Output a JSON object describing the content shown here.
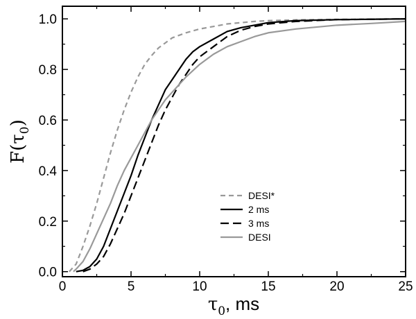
{
  "chart_data": {
    "type": "line",
    "title": "",
    "xlabel": {
      "main": "τ",
      "sub": "0",
      "rest": ",  ms"
    },
    "ylabel": {
      "main": "F(τ",
      "sub": "0",
      "rest": ")"
    },
    "xlim": [
      0,
      25
    ],
    "ylim": [
      -0.02,
      1.05
    ],
    "xticks": [
      0,
      5,
      10,
      15,
      20,
      25
    ],
    "xtick_labels": [
      "0",
      "5",
      "10",
      "15",
      "20",
      "25"
    ],
    "yticks": [
      0.0,
      0.2,
      0.4,
      0.6,
      0.8,
      1.0
    ],
    "ytick_labels": [
      "0.0",
      "0.2",
      "0.4",
      "0.6",
      "0.8",
      "1.0"
    ],
    "grid": false,
    "legend_position": "center-right",
    "series": [
      {
        "name": "DESI*",
        "color": "#999999",
        "dash": "dashed",
        "x": [
          0.5,
          1.0,
          1.5,
          2.0,
          2.5,
          3.0,
          3.5,
          4.0,
          4.5,
          5.0,
          5.5,
          6.0,
          6.5,
          7.0,
          7.5,
          8.0,
          9.0,
          10.0,
          11.0,
          12.0,
          13.0,
          14.0,
          15.0,
          17.0,
          20.0,
          25.0
        ],
        "y": [
          0.0,
          0.03,
          0.1,
          0.18,
          0.27,
          0.37,
          0.47,
          0.56,
          0.64,
          0.71,
          0.77,
          0.82,
          0.855,
          0.885,
          0.905,
          0.925,
          0.945,
          0.96,
          0.97,
          0.98,
          0.985,
          0.99,
          0.993,
          0.996,
          0.998,
          1.0
        ]
      },
      {
        "name": "2 ms",
        "color": "#000000",
        "dash": "solid",
        "x": [
          1.0,
          1.5,
          2.0,
          2.5,
          3.0,
          3.5,
          4.0,
          4.5,
          5.0,
          5.5,
          6.0,
          6.5,
          7.0,
          7.5,
          8.0,
          8.5,
          9.0,
          9.5,
          10.0,
          11.0,
          12.0,
          13.0,
          14.0,
          15.0,
          17.0,
          20.0,
          25.0
        ],
        "y": [
          0.0,
          0.005,
          0.02,
          0.05,
          0.1,
          0.17,
          0.24,
          0.31,
          0.38,
          0.46,
          0.53,
          0.6,
          0.66,
          0.72,
          0.76,
          0.8,
          0.84,
          0.87,
          0.89,
          0.92,
          0.95,
          0.965,
          0.975,
          0.985,
          0.993,
          0.997,
          1.0
        ]
      },
      {
        "name": "3 ms",
        "color": "#000000",
        "dash": "longdash",
        "x": [
          1.5,
          2.0,
          2.5,
          3.0,
          3.5,
          4.0,
          4.5,
          5.0,
          5.5,
          6.0,
          6.5,
          7.0,
          7.5,
          8.0,
          8.5,
          9.0,
          9.5,
          10.0,
          11.0,
          12.0,
          13.0,
          14.0,
          15.0,
          17.0,
          20.0,
          25.0
        ],
        "y": [
          0.0,
          0.01,
          0.03,
          0.06,
          0.11,
          0.17,
          0.23,
          0.3,
          0.37,
          0.44,
          0.51,
          0.58,
          0.64,
          0.69,
          0.74,
          0.78,
          0.82,
          0.85,
          0.89,
          0.93,
          0.955,
          0.97,
          0.98,
          0.99,
          0.997,
          1.0
        ]
      },
      {
        "name": "DESI",
        "color": "#999999",
        "dash": "solid",
        "x": [
          0.8,
          1.0,
          1.5,
          2.0,
          2.5,
          3.0,
          3.5,
          4.0,
          4.5,
          5.0,
          5.5,
          6.0,
          6.5,
          7.0,
          7.5,
          8.0,
          8.5,
          9.0,
          10.0,
          11.0,
          12.0,
          13.0,
          14.0,
          15.0,
          17.0,
          20.0,
          22.5,
          25.0
        ],
        "y": [
          0.0,
          0.01,
          0.04,
          0.09,
          0.15,
          0.21,
          0.27,
          0.34,
          0.4,
          0.45,
          0.5,
          0.55,
          0.6,
          0.64,
          0.68,
          0.71,
          0.74,
          0.77,
          0.82,
          0.86,
          0.89,
          0.91,
          0.93,
          0.945,
          0.96,
          0.975,
          0.982,
          0.99
        ]
      }
    ]
  }
}
